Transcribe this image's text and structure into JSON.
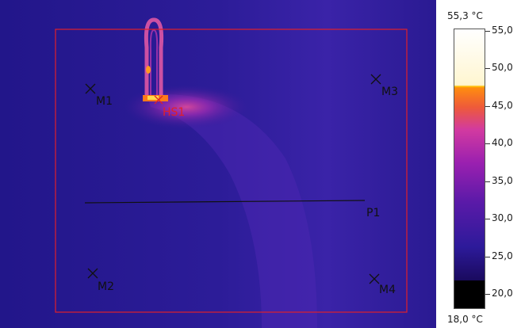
{
  "thermal_image": {
    "background_color": "#2a1a8c",
    "roi_color": "#e0202a",
    "markers": [
      {
        "label": "M1",
        "color": "#111111"
      },
      {
        "label": "M2",
        "color": "#111111"
      },
      {
        "label": "M3",
        "color": "#111111"
      },
      {
        "label": "M4",
        "color": "#111111"
      },
      {
        "label": "HS1",
        "color": "#e0202a"
      }
    ],
    "profile_line": {
      "label": "P1",
      "color": "#111111"
    }
  },
  "scale": {
    "max_label": "55,3 °C",
    "min_label": "18,0 °C",
    "tick_labels": [
      "55,0",
      "50,0",
      "45,0",
      "40,0",
      "35,0",
      "30,0",
      "25,0",
      "20,0"
    ],
    "tick_values": [
      55,
      50,
      45,
      40,
      35,
      30,
      25,
      20
    ],
    "range": [
      18.0,
      55.3
    ],
    "palette": [
      "#000000",
      "#1a0a5e",
      "#2d1a9a",
      "#5a1aa8",
      "#9a20b0",
      "#d23aa0",
      "#ee5a3a",
      "#ff8c10",
      "#ffc000",
      "#fff6d0",
      "#ffffff"
    ]
  }
}
